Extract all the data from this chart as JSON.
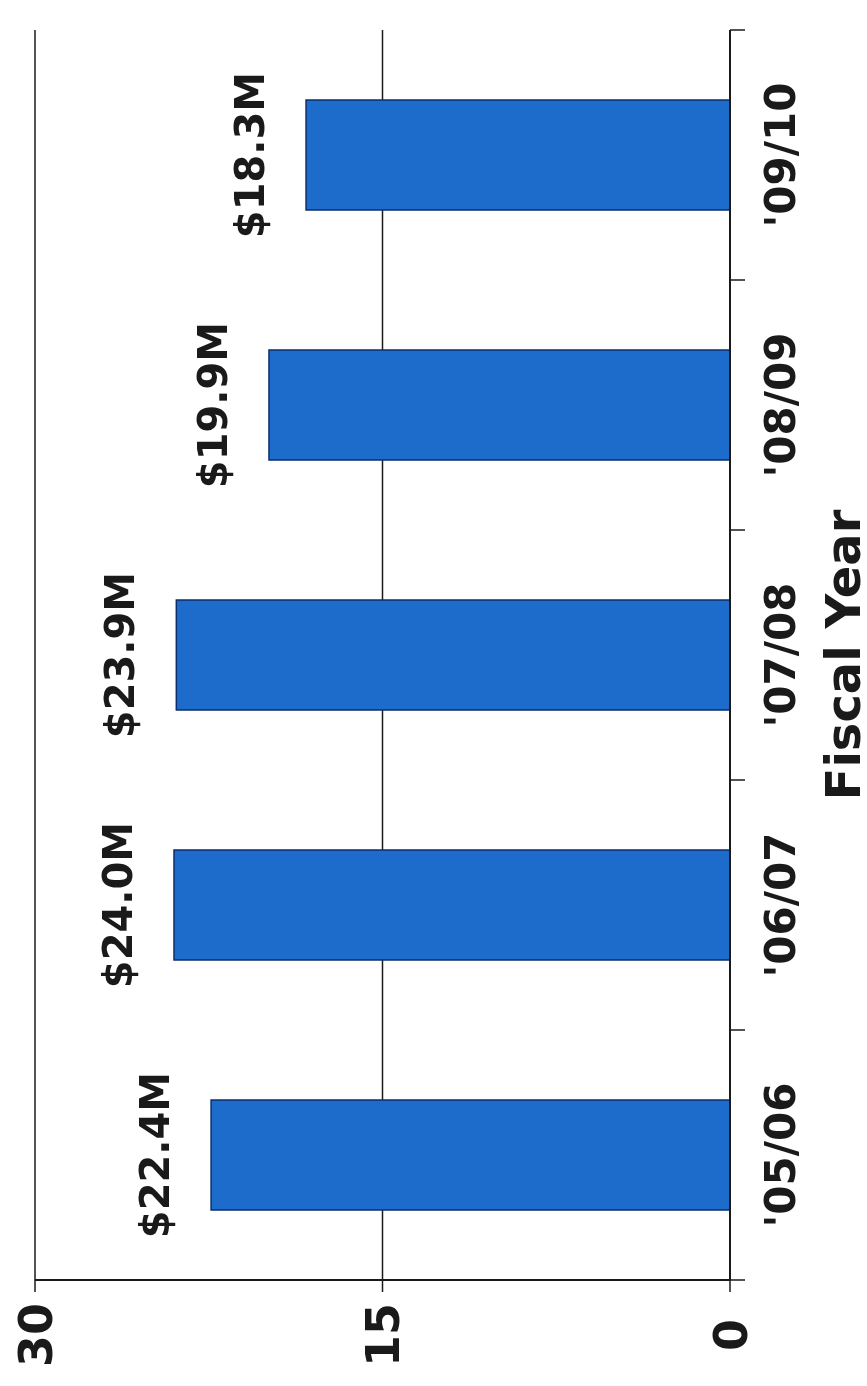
{
  "chart_data": {
    "type": "bar",
    "orientation": "horizontal",
    "ylabel": "Fiscal Year",
    "categories": [
      "'09/10",
      "'08/09",
      "'07/08",
      "'06/07",
      "'05/06"
    ],
    "values": [
      18.3,
      19.9,
      23.9,
      24.0,
      22.4
    ],
    "color": "#1d6ccc",
    "value_labels": [
      "$18.3M",
      "$19.9M",
      "$23.9M",
      "$24.0M",
      "$22.4M"
    ],
    "xlim": [
      30,
      0
    ],
    "xticks": [
      30,
      15,
      0
    ],
    "grid": "x"
  }
}
